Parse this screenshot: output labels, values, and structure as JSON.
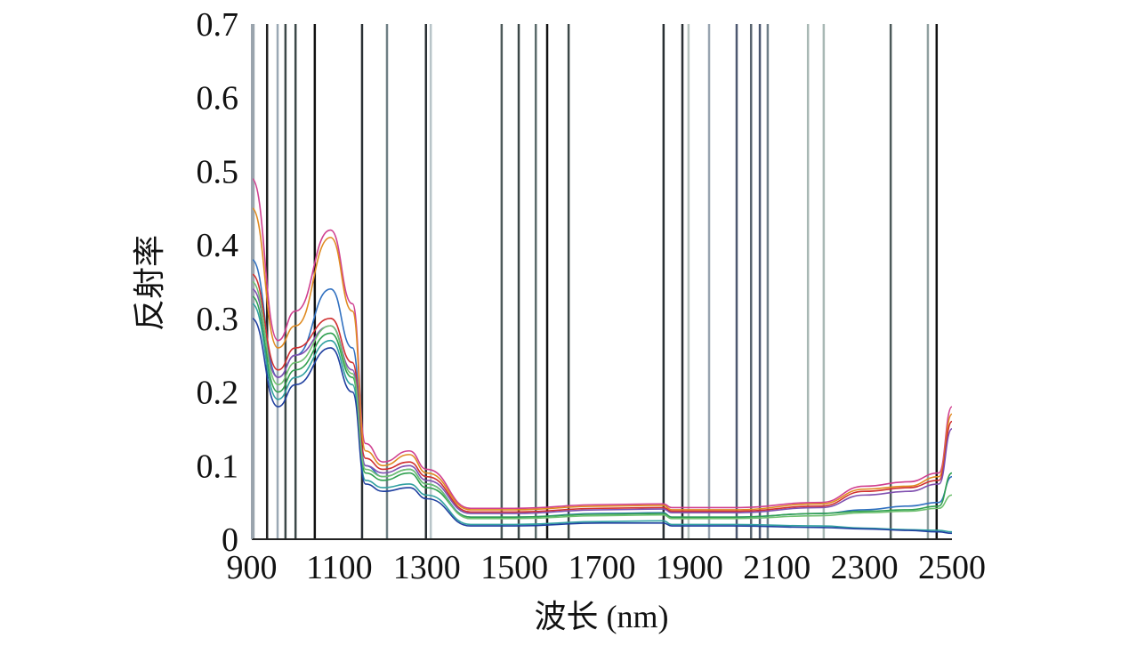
{
  "chart_data": {
    "type": "line",
    "title": "",
    "xlabel": "波长 (nm)",
    "ylabel": "反射率",
    "xlim": [
      900,
      2500
    ],
    "ylim": [
      0,
      0.7
    ],
    "xticks": [
      "900",
      "1100",
      "1300",
      "1500",
      "1700",
      "1900",
      "2100",
      "2300",
      "2500"
    ],
    "yticks": [
      "0",
      "0.1",
      "0.2",
      "0.3",
      "0.4",
      "0.5",
      "0.6",
      "0.7"
    ],
    "grid": false,
    "selected_wavelengths": [
      {
        "x": 904,
        "color": "#9aa4ad"
      },
      {
        "x": 935,
        "color": "#222"
      },
      {
        "x": 959,
        "color": "#9aa8b4"
      },
      {
        "x": 977,
        "color": "#3c4848"
      },
      {
        "x": 1000,
        "color": "#3c4848"
      },
      {
        "x": 1044,
        "color": "#111"
      },
      {
        "x": 1152,
        "color": "#2a3034"
      },
      {
        "x": 1209,
        "color": "#6f7f84"
      },
      {
        "x": 1298,
        "color": "#2a3034"
      },
      {
        "x": 1309,
        "color": "#b8c4c8"
      },
      {
        "x": 1471,
        "color": "#4d5a5a"
      },
      {
        "x": 1510,
        "color": "#3c4848"
      },
      {
        "x": 1549,
        "color": "#5a6a6a"
      },
      {
        "x": 1575,
        "color": "#111"
      },
      {
        "x": 1624,
        "color": "#3c4848"
      },
      {
        "x": 1841,
        "color": "#2a3034"
      },
      {
        "x": 1884,
        "color": "#2a3034"
      },
      {
        "x": 1898,
        "color": "#b8c4c0"
      },
      {
        "x": 1945,
        "color": "#98a4b0"
      },
      {
        "x": 2008,
        "color": "#4d5870"
      },
      {
        "x": 2041,
        "color": "#5a6570"
      },
      {
        "x": 2061,
        "color": "#4d5870"
      },
      {
        "x": 2079,
        "color": "#6f7f88"
      },
      {
        "x": 2171,
        "color": "#a8b8b4"
      },
      {
        "x": 2207,
        "color": "#a8b8b4"
      },
      {
        "x": 2360,
        "color": "#4d5a5a"
      },
      {
        "x": 2445,
        "color": "#90a0a0"
      },
      {
        "x": 2465,
        "color": "#111"
      }
    ],
    "x": [
      900,
      960,
      1000,
      1080,
      1130,
      1160,
      1200,
      1260,
      1300,
      1400,
      1500,
      1700,
      1840,
      1860,
      2000,
      2200,
      2300,
      2400,
      2470,
      2500
    ],
    "series": [
      {
        "color": "#d04090",
        "values": [
          0.49,
          0.27,
          0.31,
          0.42,
          0.32,
          0.13,
          0.105,
          0.12,
          0.095,
          0.042,
          0.042,
          0.047,
          0.048,
          0.043,
          0.043,
          0.05,
          0.072,
          0.078,
          0.09,
          0.18
        ]
      },
      {
        "color": "#e08a20",
        "values": [
          0.45,
          0.26,
          0.29,
          0.41,
          0.31,
          0.12,
          0.1,
          0.115,
          0.09,
          0.04,
          0.04,
          0.045,
          0.046,
          0.04,
          0.04,
          0.048,
          0.068,
          0.072,
          0.085,
          0.17
        ]
      },
      {
        "color": "#3070c0",
        "values": [
          0.38,
          0.22,
          0.25,
          0.34,
          0.26,
          0.1,
          0.085,
          0.095,
          0.075,
          0.03,
          0.03,
          0.035,
          0.036,
          0.03,
          0.03,
          0.035,
          0.04,
          0.045,
          0.05,
          0.085
        ]
      },
      {
        "color": "#d03030",
        "values": [
          0.36,
          0.23,
          0.26,
          0.3,
          0.24,
          0.11,
          0.095,
          0.105,
          0.085,
          0.037,
          0.037,
          0.042,
          0.043,
          0.038,
          0.038,
          0.045,
          0.065,
          0.07,
          0.08,
          0.16
        ]
      },
      {
        "color": "#8050b0",
        "values": [
          0.34,
          0.22,
          0.25,
          0.29,
          0.23,
          0.1,
          0.09,
          0.1,
          0.08,
          0.035,
          0.035,
          0.04,
          0.041,
          0.036,
          0.036,
          0.043,
          0.06,
          0.065,
          0.075,
          0.15
        ]
      },
      {
        "color": "#30a050",
        "values": [
          0.33,
          0.2,
          0.23,
          0.28,
          0.22,
          0.09,
          0.08,
          0.09,
          0.07,
          0.03,
          0.03,
          0.034,
          0.035,
          0.03,
          0.03,
          0.035,
          0.038,
          0.04,
          0.045,
          0.09
        ]
      },
      {
        "color": "#30a0a0",
        "values": [
          0.32,
          0.19,
          0.22,
          0.27,
          0.21,
          0.08,
          0.07,
          0.075,
          0.06,
          0.02,
          0.02,
          0.024,
          0.025,
          0.02,
          0.02,
          0.018,
          0.015,
          0.013,
          0.012,
          0.01
        ]
      },
      {
        "color": "#2040a0",
        "values": [
          0.3,
          0.18,
          0.21,
          0.26,
          0.2,
          0.075,
          0.065,
          0.07,
          0.055,
          0.018,
          0.018,
          0.022,
          0.022,
          0.018,
          0.018,
          0.016,
          0.014,
          0.012,
          0.01,
          0.008
        ]
      },
      {
        "color": "#70c070",
        "values": [
          0.35,
          0.21,
          0.24,
          0.29,
          0.225,
          0.095,
          0.085,
          0.095,
          0.075,
          0.028,
          0.028,
          0.032,
          0.033,
          0.028,
          0.028,
          0.032,
          0.036,
          0.038,
          0.042,
          0.06
        ]
      }
    ]
  }
}
